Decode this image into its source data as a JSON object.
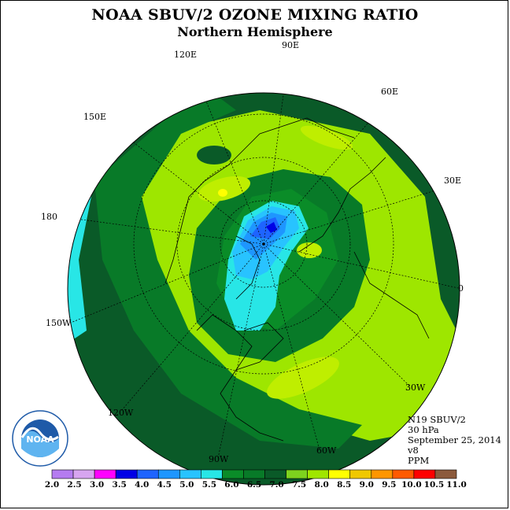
{
  "title": "NOAA SBUV/2 OZONE MIXING RATIO",
  "subtitle": "Northern Hemisphere",
  "info": {
    "satellite": "N19 SBUV/2",
    "pressure": "30 hPa",
    "date": "September 25, 2014",
    "version": "v8",
    "units": "PPM"
  },
  "longitude_labels": [
    "90E",
    "60E",
    "30E",
    "0",
    "30W",
    "60W",
    "90W",
    "120W",
    "150W",
    "180",
    "150E",
    "120E"
  ],
  "colorbar": {
    "labels": [
      "2.0",
      "2.5",
      "3.0",
      "3.5",
      "4.0",
      "4.5",
      "5.0",
      "5.5",
      "6.0",
      "6.5",
      "7.0",
      "7.5",
      "8.0",
      "8.5",
      "9.0",
      "9.5",
      "10.0",
      "10.5",
      "11.0"
    ],
    "colors": [
      "#b57cf0",
      "#d7a5f0",
      "#ff00ff",
      "#0000e6",
      "#1e64ff",
      "#1e96ff",
      "#28c3ff",
      "#28e6e6",
      "#0a8c28",
      "#087a28",
      "#0a5a28",
      "#7ed21e",
      "#a0e600",
      "#ffff00",
      "#f0c800",
      "#ff9600",
      "#ff5a00",
      "#ff0000",
      "#8c5a3c"
    ]
  },
  "logo": {
    "text": "NOAA",
    "icon": "noaa-seal-icon"
  }
}
